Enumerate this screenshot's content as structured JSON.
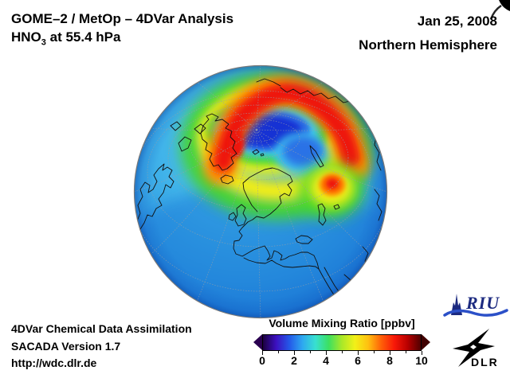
{
  "header": {
    "title_line1": "GOME–2 / MetOp – 4DVar Analysis",
    "species": "HNO",
    "species_sub": "3",
    "level_suffix": " at 55.4 hPa",
    "date": "Jan 25, 2008",
    "hemisphere": "Northern Hemisphere"
  },
  "footer": {
    "line1": "4DVar Chemical Data Assimilation",
    "line2": "SACADA Version 1.7",
    "line3": "http://wdc.dlr.de"
  },
  "colorbar": {
    "title": "Volume Mixing Ratio [ppbv]",
    "tick_labels": [
      "0",
      "2",
      "4",
      "6",
      "8",
      "10"
    ],
    "min": 0,
    "max": 10,
    "gradient_stops": [
      "#1c0040",
      "#3c10c0",
      "#2458e8",
      "#2ea8f0",
      "#38e0d0",
      "#3ce060",
      "#aae828",
      "#f2f018",
      "#ffc010",
      "#ff6008",
      "#f81808",
      "#b80000",
      "#500000"
    ],
    "left_arrow_color": "#2a0050",
    "right_arrow_color": "#400000"
  },
  "logos": {
    "riu_text": "RIU",
    "dlr_text": "DLR"
  },
  "chart_data": {
    "type": "heatmap",
    "projection": "orthographic globe, North-polar view over Europe/Atlantic",
    "title": "GOME-2 / MetOp - 4DVar Analysis",
    "variable": "HNO3 volume mixing ratio",
    "pressure_level": "55.4 hPa",
    "date": "Jan 25, 2008",
    "region": "Northern Hemisphere",
    "units": "ppbv",
    "colorbar_range": [
      0,
      10
    ],
    "colorbar_ticks": [
      0,
      2,
      4,
      6,
      8,
      10
    ],
    "palette": {
      "vortex_min": "#1630d4",
      "inner_blue": "#2a6ae6",
      "background_cyan": "#40b4ea",
      "green_band": "#3ed838",
      "yellow_band": "#f2ee18",
      "orange_band": "#ff8800",
      "max_red": "#ee1408",
      "limb_blue": "#1a6fd2"
    },
    "features": [
      {
        "name": "polar vortex minimum",
        "location": "near North Pole (dark blue oval)",
        "value_ppbv": 0.8
      },
      {
        "name": "annular maximum ring",
        "location": "crescent around vortex, strongest over Arctic Siberia/Greenland side",
        "value_ppbv": 9
      },
      {
        "name": "secondary maximum blob",
        "location": "south-east of vortex near Caspian sector",
        "value_ppbv": 8.5
      },
      {
        "name": "yellow-green band",
        "location": "southern side of ring over Scandinavia/Baltic",
        "value_ppbv": 6
      },
      {
        "name": "mid-latitude background",
        "location": "Atlantic / Europe",
        "value_ppbv": 2.5
      },
      {
        "name": "subtropical low values",
        "location": "North Africa / lower limb",
        "value_ppbv": 1.5
      }
    ]
  }
}
